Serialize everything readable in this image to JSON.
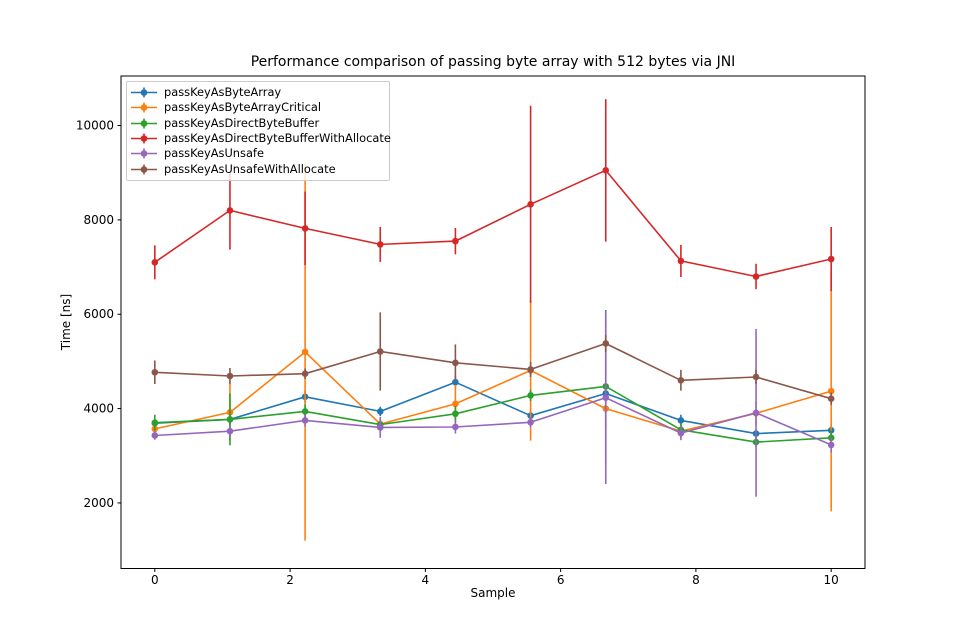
{
  "figure": {
    "title": "Performance comparison of passing byte array with 512 bytes via JNI",
    "xlabel": "Sample",
    "ylabel": "Time [ns]"
  },
  "chart_data": {
    "type": "line",
    "title": "Performance comparison of passing byte array with 512 bytes via JNI",
    "xlabel": "Sample",
    "ylabel": "Time [ns]",
    "xlim": [
      -0.5,
      10.5
    ],
    "ylim": [
      610,
      11050
    ],
    "x_ticks": [
      0,
      2,
      4,
      6,
      8,
      10
    ],
    "y_ticks": [
      2000,
      4000,
      6000,
      8000,
      10000
    ],
    "grid": false,
    "legend_position": "upper left",
    "marker": "circle",
    "error_bars": true,
    "x": [
      0,
      1.111,
      2.222,
      3.333,
      4.444,
      5.556,
      6.667,
      7.778,
      8.889,
      10
    ],
    "series": [
      {
        "name": "passKeyAsByteArray",
        "color": "#1f77b4",
        "values": [
          3690,
          3770,
          4250,
          3940,
          4560,
          3850,
          4320,
          3750,
          3470,
          3540
        ],
        "errors": [
          100,
          120,
          130,
          100,
          140,
          100,
          160,
          120,
          90,
          120
        ]
      },
      {
        "name": "passKeyAsByteArrayCritical",
        "color": "#ff7f0e",
        "values": [
          3570,
          3920,
          5200,
          3670,
          4100,
          4810,
          4000,
          3520,
          3900,
          4370
        ],
        "errors": [
          150,
          600,
          4000,
          150,
          400,
          1490,
          400,
          150,
          250,
          2550
        ]
      },
      {
        "name": "passKeyAsDirectByteBuffer",
        "color": "#2ca02c",
        "values": [
          3700,
          3770,
          3940,
          3660,
          3890,
          4280,
          4470,
          3550,
          3290,
          3380
        ],
        "errors": [
          170,
          550,
          150,
          110,
          160,
          120,
          1620,
          140,
          100,
          160
        ]
      },
      {
        "name": "passKeyAsDirectByteBufferWithAllocate",
        "color": "#d62728",
        "values": [
          7100,
          8200,
          7820,
          7480,
          7550,
          8330,
          9050,
          7130,
          6800,
          7170
        ],
        "errors": [
          360,
          830,
          780,
          370,
          280,
          2090,
          1510,
          340,
          270,
          680
        ]
      },
      {
        "name": "passKeyAsUnsafe",
        "color": "#9467bd",
        "values": [
          3430,
          3520,
          3750,
          3600,
          3610,
          3710,
          4230,
          3480,
          3910,
          3230
        ],
        "errors": [
          90,
          120,
          130,
          220,
          140,
          110,
          1830,
          150,
          1780,
          160
        ]
      },
      {
        "name": "passKeyAsUnsafeWithAllocate",
        "color": "#8c564b",
        "values": [
          4770,
          4690,
          4740,
          5210,
          4970,
          4830,
          5380,
          4600,
          4670,
          4210
        ],
        "errors": [
          250,
          170,
          110,
          830,
          390,
          160,
          180,
          220,
          150,
          130
        ]
      }
    ]
  }
}
